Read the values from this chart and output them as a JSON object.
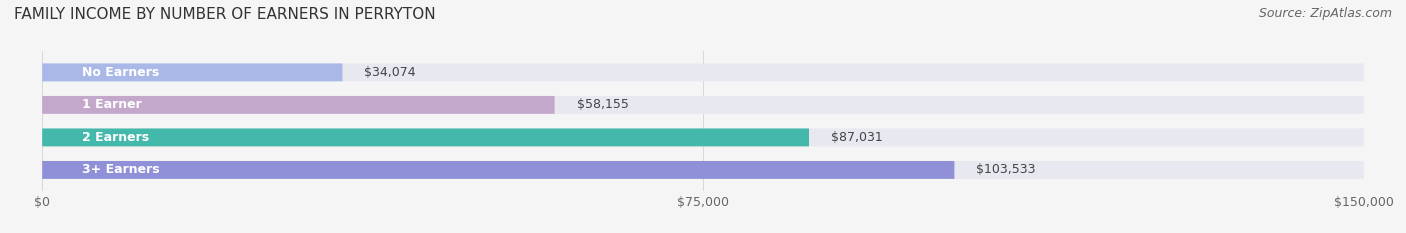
{
  "title": "FAMILY INCOME BY NUMBER OF EARNERS IN PERRYTON",
  "source": "Source: ZipAtlas.com",
  "categories": [
    "No Earners",
    "1 Earner",
    "2 Earners",
    "3+ Earners"
  ],
  "values": [
    34074,
    58155,
    87031,
    103533
  ],
  "bar_colors": [
    "#aab8e8",
    "#c4a8cc",
    "#45b8ac",
    "#9090d8"
  ],
  "bar_background": "#e8e8f0",
  "xlim": [
    0,
    150000
  ],
  "xticks": [
    0,
    75000,
    150000
  ],
  "xtick_labels": [
    "$0",
    "$75,000",
    "$150,000"
  ],
  "fig_background": "#f5f5f5",
  "bar_height": 0.55,
  "title_fontsize": 11,
  "source_fontsize": 9,
  "label_fontsize": 9,
  "cat_fontsize": 9,
  "tick_fontsize": 9
}
